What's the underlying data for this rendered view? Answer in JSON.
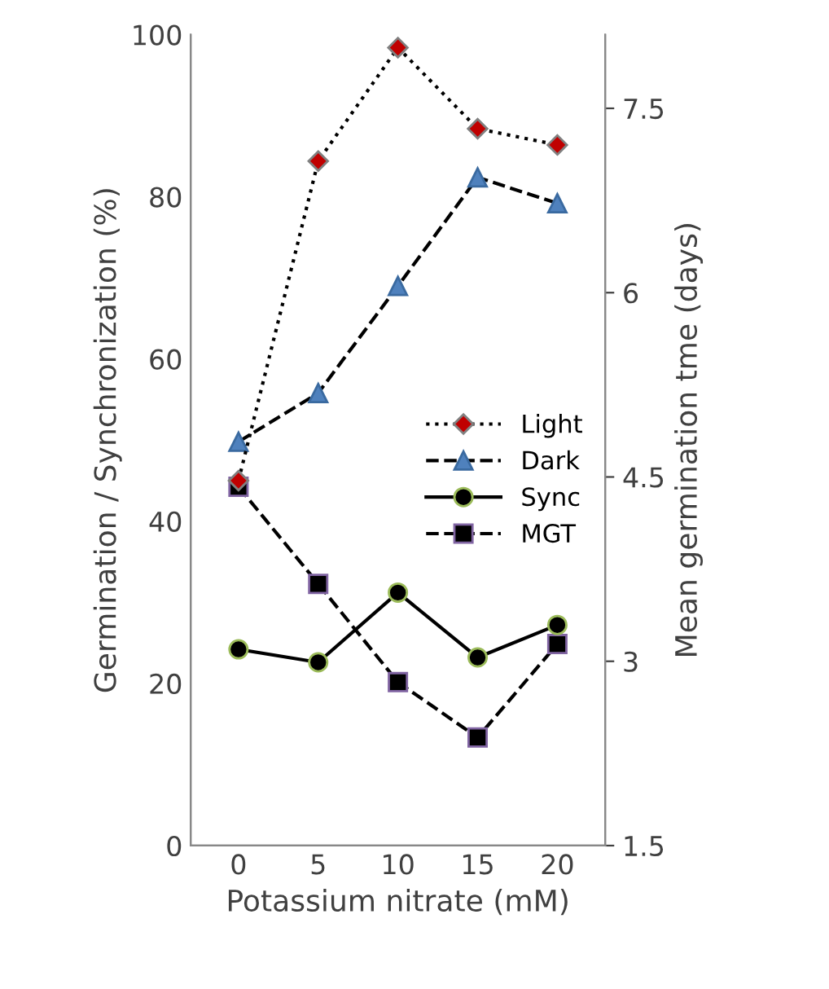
{
  "chart_data": {
    "type": "line",
    "xlabel": "Potassium nitrate (mM)",
    "ylabel": "Germination / Synchronization (%)",
    "y2label": "Mean germination tme (days)",
    "categories": [
      "0",
      "5",
      "10",
      "15",
      "20"
    ],
    "series": [
      {
        "name": "Light",
        "color": "#c00000",
        "values": [
          45,
          84.4,
          98.4,
          88.4,
          86.4
        ],
        "marker": "diamond",
        "line_style": "dotted"
      },
      {
        "name": "Dark",
        "color": "#4f81bd",
        "values": [
          49.8,
          55.8,
          69,
          82.4,
          79.2
        ],
        "marker": "triangle",
        "line_style": "dashed"
      },
      {
        "name": "Sync",
        "color": "#000000",
        "values": [
          24.2,
          22.6,
          31.2,
          23.2,
          27.2
        ],
        "marker": "circle",
        "line_style": "solid"
      },
      {
        "name": "MGT",
        "color": "#000000",
        "values": [
          4.42,
          3.63,
          2.83,
          2.38,
          3.14
        ],
        "marker": "square",
        "line_style": "dashed",
        "axis": "y2"
      }
    ],
    "ylim": [
      0,
      100
    ],
    "yticks": [
      0,
      20,
      40,
      60,
      80,
      100
    ],
    "y2lim": [
      1.5,
      8.1
    ],
    "y2ticks": [
      1.5,
      3,
      4.5,
      6,
      7.5
    ],
    "grid": false,
    "legend": "right"
  }
}
